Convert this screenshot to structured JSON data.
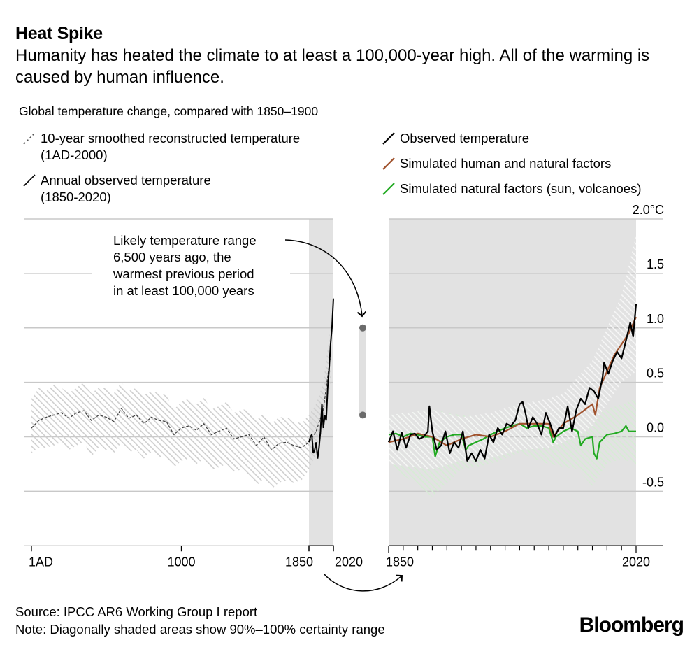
{
  "header": {
    "title": "Heat Spike",
    "subtitle": "Humanity has heated the climate to at least a 100,000-year high. All of the warming is caused by human influence.",
    "chart_title": "Global temperature change, compared with 1850–1900"
  },
  "legend_left": [
    {
      "label_line1": "10-year smoothed reconstructed temperature",
      "label_line2": "(1AD-2000)",
      "style": "dashed",
      "color": "#555555"
    },
    {
      "label_line1": "Annual observed temperature",
      "label_line2": "(1850-2020)",
      "style": "solid",
      "color": "#000000"
    }
  ],
  "legend_right": [
    {
      "label": "Observed temperature",
      "color": "#000000"
    },
    {
      "label": "Simulated human and natural factors",
      "color": "#a0522d"
    },
    {
      "label": "Simulated natural factors (sun, volcanoes)",
      "color": "#22aa22"
    }
  ],
  "annotation": {
    "lines": [
      "Likely temperature range",
      "6,500 years ago, the",
      "warmest previous period",
      "in at least 100,000 years"
    ],
    "range_low": 0.2,
    "range_high": 1.0
  },
  "footer": {
    "source": "Source: IPCC AR6 Working Group I report",
    "note": "Note: Diagonally shaded areas show 90%–100% certainty range",
    "logo": "Bloomberg"
  },
  "colors": {
    "observed": "#000000",
    "human_natural": "#a0522d",
    "natural": "#22aa22",
    "grid": "#c8c8c8",
    "band": "#e2e2e2",
    "hatch_gray": "#cfcfcf",
    "hatch_green": "#cfe8cf",
    "pill": "#e0e0e0",
    "pill_dot": "#6b6b6b"
  },
  "chart_data": [
    {
      "type": "line",
      "title": "Reconstructed and observed temperature, 1AD–2020",
      "xlabel": "",
      "ylabel": "Global temperature change (°C)",
      "xlim": [
        1,
        2020
      ],
      "ylim": [
        -1.0,
        2.0
      ],
      "x_ticks": [
        {
          "value": 1,
          "label": "1AD"
        },
        {
          "value": 1000,
          "label": "1000"
        },
        {
          "value": 1850,
          "label": "1850"
        },
        {
          "value": 2020,
          "label": "2020"
        }
      ],
      "grid": true,
      "highlight_band": [
        1850,
        2020
      ],
      "series": [
        {
          "name": "10-year smoothed reconstructed temperature",
          "style": "dashed",
          "x": [
            1,
            50,
            100,
            150,
            200,
            250,
            300,
            350,
            400,
            450,
            500,
            550,
            600,
            650,
            700,
            750,
            800,
            850,
            900,
            950,
            1000,
            1050,
            1100,
            1150,
            1200,
            1250,
            1300,
            1350,
            1400,
            1450,
            1500,
            1550,
            1600,
            1650,
            1700,
            1750,
            1800,
            1850,
            1900,
            1950,
            2000
          ],
          "y": [
            0.08,
            0.15,
            0.18,
            0.2,
            0.22,
            0.17,
            0.22,
            0.24,
            0.15,
            0.2,
            0.18,
            0.14,
            0.26,
            0.17,
            0.2,
            0.12,
            0.18,
            0.15,
            0.14,
            0.02,
            0.08,
            0.1,
            0.06,
            0.12,
            0.02,
            0.05,
            0.08,
            -0.02,
            0.0,
            0.02,
            -0.08,
            0.0,
            -0.12,
            -0.06,
            -0.05,
            -0.08,
            -0.1,
            -0.05,
            0.05,
            0.25,
            0.75
          ],
          "band_low": [
            -0.15,
            -0.1,
            -0.1,
            -0.08,
            -0.05,
            -0.12,
            -0.08,
            -0.05,
            -0.18,
            -0.1,
            -0.12,
            -0.15,
            -0.05,
            -0.14,
            -0.12,
            -0.2,
            -0.14,
            -0.18,
            -0.2,
            -0.28,
            -0.22,
            -0.2,
            -0.25,
            -0.2,
            -0.3,
            -0.28,
            -0.25,
            -0.32,
            -0.3,
            -0.35,
            -0.45,
            -0.38,
            -0.48,
            -0.42,
            -0.4,
            -0.42,
            -0.4,
            -0.3,
            -0.15,
            0.05,
            0.5
          ],
          "band_high": [
            0.35,
            0.45,
            0.42,
            0.48,
            0.45,
            0.4,
            0.45,
            0.5,
            0.4,
            0.45,
            0.45,
            0.4,
            0.5,
            0.42,
            0.45,
            0.38,
            0.42,
            0.4,
            0.38,
            0.25,
            0.32,
            0.35,
            0.3,
            0.36,
            0.25,
            0.28,
            0.32,
            0.22,
            0.25,
            0.25,
            0.15,
            0.22,
            0.12,
            0.18,
            0.18,
            0.15,
            0.12,
            0.2,
            0.3,
            0.5,
            1.0
          ]
        },
        {
          "name": "Annual observed temperature",
          "style": "solid",
          "x": [
            1850,
            1860,
            1870,
            1880,
            1890,
            1900,
            1910,
            1920,
            1930,
            1940,
            1950,
            1960,
            1970,
            1980,
            1990,
            2000,
            2010,
            2020
          ],
          "y": [
            -0.05,
            0.0,
            0.02,
            -0.15,
            -0.12,
            -0.05,
            -0.2,
            -0.1,
            0.05,
            0.3,
            0.08,
            0.2,
            0.15,
            0.45,
            0.62,
            0.85,
            1.0,
            1.27
          ]
        }
      ]
    },
    {
      "type": "line",
      "title": "Observed vs simulated temperature, 1850–2020",
      "xlabel": "",
      "ylabel": "Global temperature change (°C)",
      "xlim": [
        1850,
        2020
      ],
      "ylim": [
        -1.0,
        2.0
      ],
      "y_ticks": [
        "2.0°C",
        "1.5",
        "1.0",
        "0.5",
        "0.0",
        "-0.5"
      ],
      "y_tick_values": [
        2.0,
        1.5,
        1.0,
        0.5,
        0.0,
        -0.5
      ],
      "x_ticks": [
        {
          "value": 1850,
          "label": "1850"
        },
        {
          "value": 2020,
          "label": "2020"
        }
      ],
      "minor_tick_step": 10,
      "grid": true,
      "legend": "top",
      "series": [
        {
          "name": "Observed temperature",
          "x": [
            1850,
            1853,
            1856,
            1859,
            1862,
            1865,
            1868,
            1871,
            1874,
            1877,
            1878,
            1880,
            1883,
            1886,
            1889,
            1892,
            1895,
            1898,
            1901,
            1904,
            1907,
            1910,
            1913,
            1916,
            1919,
            1922,
            1925,
            1928,
            1931,
            1934,
            1937,
            1940,
            1942,
            1944,
            1946,
            1949,
            1952,
            1955,
            1958,
            1961,
            1964,
            1967,
            1970,
            1973,
            1976,
            1979,
            1982,
            1985,
            1988,
            1991,
            1994,
            1997,
            1998,
            2001,
            2004,
            2007,
            2010,
            2013,
            2016,
            2018,
            2020
          ],
          "y": [
            -0.05,
            0.05,
            -0.12,
            0.04,
            -0.1,
            0.02,
            0.03,
            -0.02,
            0.0,
            0.05,
            0.28,
            0.05,
            -0.12,
            -0.08,
            0.05,
            -0.15,
            -0.05,
            -0.1,
            0.05,
            -0.22,
            -0.15,
            -0.22,
            -0.12,
            -0.2,
            0.02,
            -0.05,
            0.08,
            0.02,
            0.12,
            0.1,
            0.15,
            0.3,
            0.32,
            0.22,
            0.08,
            0.18,
            0.12,
            0.02,
            0.22,
            0.12,
            0.0,
            0.08,
            0.08,
            0.28,
            0.05,
            0.25,
            0.35,
            0.3,
            0.45,
            0.42,
            0.35,
            0.55,
            0.68,
            0.58,
            0.7,
            0.78,
            0.72,
            0.88,
            1.05,
            0.92,
            1.22
          ]
        },
        {
          "name": "Simulated human and natural factors",
          "x": [
            1850,
            1860,
            1870,
            1880,
            1890,
            1900,
            1910,
            1920,
            1930,
            1940,
            1950,
            1960,
            1963,
            1970,
            1980,
            1985,
            1990,
            1992,
            1995,
            2000,
            2005,
            2010,
            2015,
            2020
          ],
          "y": [
            -0.05,
            -0.02,
            0.03,
            0.0,
            -0.08,
            -0.02,
            0.02,
            0.0,
            0.05,
            0.12,
            0.12,
            0.12,
            0.0,
            0.12,
            0.2,
            0.25,
            0.3,
            0.2,
            0.45,
            0.6,
            0.75,
            0.85,
            0.95,
            1.1
          ]
        },
        {
          "name": "Simulated natural factors (sun, volcanoes)",
          "x": [
            1850,
            1855,
            1860,
            1865,
            1870,
            1875,
            1880,
            1882,
            1885,
            1890,
            1895,
            1900,
            1903,
            1905,
            1910,
            1915,
            1920,
            1925,
            1930,
            1935,
            1940,
            1945,
            1950,
            1955,
            1960,
            1963,
            1965,
            1970,
            1975,
            1980,
            1982,
            1985,
            1990,
            1991,
            1993,
            1995,
            2000,
            2005,
            2010,
            2013,
            2015,
            2020
          ],
          "y": [
            0.02,
            0.03,
            0.0,
            0.03,
            0.02,
            0.0,
            0.0,
            -0.18,
            -0.05,
            0.0,
            0.02,
            0.02,
            -0.12,
            -0.08,
            -0.05,
            -0.02,
            0.02,
            0.05,
            0.08,
            0.1,
            0.12,
            0.08,
            0.1,
            0.1,
            0.08,
            -0.05,
            0.0,
            0.05,
            0.08,
            0.05,
            -0.08,
            -0.02,
            0.0,
            -0.15,
            -0.2,
            -0.05,
            0.02,
            0.03,
            0.05,
            0.1,
            0.05,
            0.05
          ]
        }
      ],
      "bands": [
        {
          "name": "Simulated human and natural factors range",
          "x": [
            1850,
            1880,
            1900,
            1920,
            1940,
            1960,
            1970,
            1980,
            1990,
            2000,
            2010,
            2020
          ],
          "low": [
            -0.25,
            -0.3,
            -0.22,
            -0.2,
            -0.12,
            -0.1,
            -0.05,
            0.0,
            0.1,
            0.3,
            0.5,
            0.6
          ],
          "high": [
            0.2,
            0.25,
            0.18,
            0.22,
            0.3,
            0.35,
            0.4,
            0.55,
            0.7,
            1.0,
            1.3,
            1.85
          ]
        },
        {
          "name": "Simulated natural factors range",
          "x": [
            1850,
            1880,
            1900,
            1920,
            1940,
            1960,
            1980,
            1990,
            2000,
            2010,
            2020
          ],
          "low": [
            -0.25,
            -0.55,
            -0.3,
            -0.25,
            -0.15,
            -0.25,
            -0.3,
            -0.45,
            -0.25,
            -0.2,
            -0.25
          ],
          "high": [
            0.2,
            0.25,
            0.2,
            0.2,
            0.3,
            0.25,
            0.25,
            0.2,
            0.25,
            0.3,
            0.35
          ]
        }
      ]
    }
  ]
}
